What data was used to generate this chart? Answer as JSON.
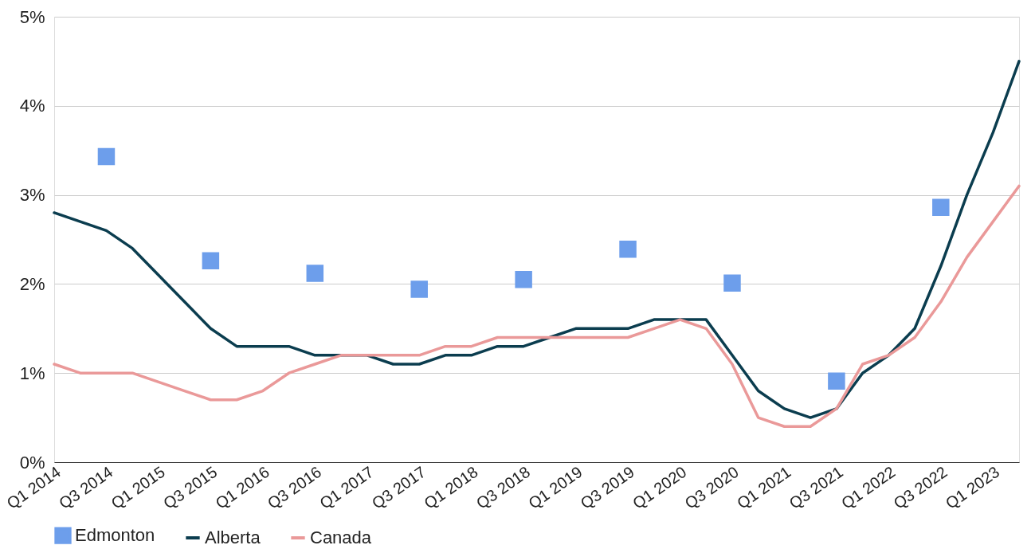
{
  "chart_data": {
    "type": "line",
    "categories": [
      "Q1 2014",
      null,
      "Q3 2014",
      null,
      "Q1 2015",
      null,
      "Q3 2015",
      null,
      "Q1 2016",
      null,
      "Q3 2016",
      null,
      "Q1 2017",
      null,
      "Q3 2017",
      null,
      "Q1 2018",
      null,
      "Q3 2018",
      null,
      "Q1 2019",
      null,
      "Q3 2019",
      null,
      "Q1 2020",
      null,
      "Q3 2020",
      null,
      "Q1 2021",
      null,
      "Q3 2021",
      null,
      "Q1 2022",
      null,
      "Q3 2022",
      null,
      "Q1 2023",
      null
    ],
    "series": [
      {
        "name": "Edmonton",
        "type": "scatter",
        "marker": "square",
        "color": "#6d9eeb",
        "values": [
          null,
          null,
          3.43,
          null,
          null,
          null,
          2.26,
          null,
          null,
          null,
          2.12,
          null,
          null,
          null,
          1.94,
          null,
          null,
          null,
          2.05,
          null,
          null,
          null,
          2.39,
          null,
          null,
          null,
          2.01,
          null,
          null,
          null,
          0.91,
          null,
          null,
          null,
          2.86,
          null,
          null,
          null
        ]
      },
      {
        "name": "Alberta",
        "line_style": "solid",
        "color": "#0b3d4f",
        "values": [
          2.8,
          2.7,
          2.6,
          2.4,
          2.1,
          1.8,
          1.5,
          1.3,
          1.3,
          1.3,
          1.2,
          1.2,
          1.2,
          1.1,
          1.1,
          1.2,
          1.2,
          1.3,
          1.3,
          1.4,
          1.5,
          1.5,
          1.5,
          1.6,
          1.6,
          1.6,
          1.2,
          0.8,
          0.6,
          0.5,
          0.6,
          1.0,
          1.2,
          1.5,
          2.2,
          3.0,
          3.7,
          4.5
        ]
      },
      {
        "name": "Canada",
        "line_style": "solid",
        "color": "#ea9999",
        "values": [
          1.1,
          1.0,
          1.0,
          1.0,
          0.9,
          0.8,
          0.7,
          0.7,
          0.8,
          1.0,
          1.1,
          1.2,
          1.2,
          1.2,
          1.2,
          1.3,
          1.3,
          1.4,
          1.4,
          1.4,
          1.4,
          1.4,
          1.4,
          1.5,
          1.6,
          1.5,
          1.1,
          0.5,
          0.4,
          0.4,
          0.6,
          1.1,
          1.2,
          1.4,
          1.8,
          2.3,
          2.7,
          3.1
        ]
      }
    ],
    "ylim": [
      0,
      5
    ],
    "yticks": [
      {
        "value": 0,
        "label": "0%"
      },
      {
        "value": 1,
        "label": "1%"
      },
      {
        "value": 2,
        "label": "2%"
      },
      {
        "value": 3,
        "label": "3%"
      },
      {
        "value": 4,
        "label": "4%"
      },
      {
        "value": 5,
        "label": "5%"
      }
    ],
    "grid": "y",
    "legend": "bottom"
  }
}
